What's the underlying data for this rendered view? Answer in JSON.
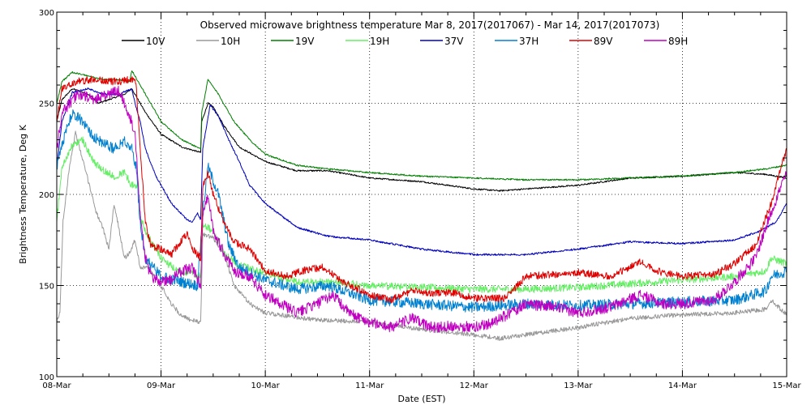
{
  "chart_data": {
    "type": "line",
    "title": "Observed microwave brightness temperature Mar  8, 2017(2017067) - Mar 14, 2017(2017073)",
    "xlabel": "Date (EST)",
    "ylabel": "Brightness Temperature, Deg K",
    "x_tick_labels": [
      "08-Mar",
      "09-Mar",
      "10-Mar",
      "11-Mar",
      "12-Mar",
      "13-Mar",
      "14-Mar",
      "15-Mar"
    ],
    "xlim": [
      0,
      7
    ],
    "ylim": [
      100,
      300
    ],
    "y_ticks": [
      100,
      150,
      200,
      250,
      300
    ],
    "grid": "dotted",
    "legend_position": "top",
    "series": [
      {
        "name": "10V",
        "color": "#000000",
        "noise": 0.4,
        "points": [
          [
            0,
            240
          ],
          [
            0.05,
            252
          ],
          [
            0.15,
            258
          ],
          [
            0.3,
            255
          ],
          [
            0.4,
            250
          ],
          [
            0.5,
            252
          ],
          [
            0.65,
            255
          ],
          [
            0.72,
            258
          ],
          [
            0.78,
            252
          ],
          [
            0.85,
            245
          ],
          [
            1.0,
            233
          ],
          [
            1.2,
            226
          ],
          [
            1.38,
            223
          ],
          [
            1.39,
            240
          ],
          [
            1.45,
            250
          ],
          [
            1.5,
            248
          ],
          [
            1.6,
            238
          ],
          [
            1.75,
            226
          ],
          [
            2.0,
            218
          ],
          [
            2.3,
            213
          ],
          [
            2.6,
            213
          ],
          [
            3.0,
            209
          ],
          [
            3.5,
            207
          ],
          [
            4.0,
            203
          ],
          [
            4.25,
            202
          ],
          [
            4.5,
            203
          ],
          [
            5.0,
            205
          ],
          [
            5.5,
            209
          ],
          [
            6.0,
            210
          ],
          [
            6.5,
            212
          ],
          [
            6.8,
            211
          ],
          [
            7.0,
            209
          ]
        ]
      },
      {
        "name": "10H",
        "color": "#999999",
        "noise": 1.2,
        "points": [
          [
            0,
            130
          ],
          [
            0.03,
            135
          ],
          [
            0.06,
            185
          ],
          [
            0.12,
            215
          ],
          [
            0.18,
            234
          ],
          [
            0.22,
            225
          ],
          [
            0.3,
            208
          ],
          [
            0.38,
            190
          ],
          [
            0.45,
            180
          ],
          [
            0.5,
            170
          ],
          [
            0.55,
            195
          ],
          [
            0.6,
            180
          ],
          [
            0.65,
            165
          ],
          [
            0.7,
            168
          ],
          [
            0.75,
            175
          ],
          [
            0.8,
            160
          ],
          [
            0.88,
            160
          ],
          [
            1.0,
            150
          ],
          [
            1.1,
            140
          ],
          [
            1.2,
            133
          ],
          [
            1.35,
            130
          ],
          [
            1.38,
            130
          ],
          [
            1.4,
            178
          ],
          [
            1.5,
            176
          ],
          [
            1.6,
            168
          ],
          [
            1.7,
            150
          ],
          [
            1.85,
            140
          ],
          [
            2.0,
            135
          ],
          [
            2.5,
            131
          ],
          [
            3.0,
            130
          ],
          [
            3.5,
            126
          ],
          [
            4.0,
            123
          ],
          [
            4.25,
            121
          ],
          [
            4.5,
            123
          ],
          [
            5.0,
            127
          ],
          [
            5.5,
            132
          ],
          [
            6.0,
            134
          ],
          [
            6.5,
            135
          ],
          [
            6.8,
            137
          ],
          [
            6.85,
            142
          ],
          [
            7.0,
            134
          ]
        ]
      },
      {
        "name": "19V",
        "color": "#008000",
        "noise": 0.4,
        "points": [
          [
            0,
            250
          ],
          [
            0.05,
            262
          ],
          [
            0.15,
            267
          ],
          [
            0.3,
            265
          ],
          [
            0.45,
            263
          ],
          [
            0.6,
            263
          ],
          [
            0.7,
            262
          ],
          [
            0.72,
            268
          ],
          [
            0.78,
            262
          ],
          [
            0.85,
            255
          ],
          [
            1.0,
            240
          ],
          [
            1.2,
            230
          ],
          [
            1.38,
            225
          ],
          [
            1.39,
            245
          ],
          [
            1.45,
            263
          ],
          [
            1.55,
            255
          ],
          [
            1.7,
            240
          ],
          [
            1.85,
            230
          ],
          [
            2.0,
            222
          ],
          [
            2.3,
            216
          ],
          [
            2.6,
            214
          ],
          [
            3.0,
            212
          ],
          [
            3.5,
            210
          ],
          [
            4.0,
            209
          ],
          [
            4.5,
            208
          ],
          [
            5.0,
            208
          ],
          [
            5.5,
            209
          ],
          [
            6.0,
            210
          ],
          [
            6.5,
            212
          ],
          [
            6.8,
            214
          ],
          [
            7.0,
            216
          ]
        ]
      },
      {
        "name": "19H",
        "color": "#66ee66",
        "noise": 2.0,
        "points": [
          [
            0,
            185
          ],
          [
            0.05,
            215
          ],
          [
            0.15,
            227
          ],
          [
            0.25,
            230
          ],
          [
            0.35,
            218
          ],
          [
            0.45,
            213
          ],
          [
            0.55,
            210
          ],
          [
            0.65,
            212
          ],
          [
            0.72,
            205
          ],
          [
            0.78,
            205
          ],
          [
            0.8,
            188
          ],
          [
            0.85,
            180
          ],
          [
            1.0,
            165
          ],
          [
            1.15,
            158
          ],
          [
            1.3,
            157
          ],
          [
            1.38,
            155
          ],
          [
            1.4,
            183
          ],
          [
            1.5,
            180
          ],
          [
            1.6,
            168
          ],
          [
            1.75,
            161
          ],
          [
            2.0,
            157
          ],
          [
            2.3,
            152
          ],
          [
            2.6,
            152
          ],
          [
            3.0,
            150
          ],
          [
            3.5,
            149
          ],
          [
            4.0,
            148
          ],
          [
            4.5,
            148
          ],
          [
            5.0,
            149
          ],
          [
            5.5,
            151
          ],
          [
            6.0,
            153
          ],
          [
            6.5,
            155
          ],
          [
            6.8,
            158
          ],
          [
            6.85,
            165
          ],
          [
            7.0,
            162
          ]
        ]
      },
      {
        "name": "37V",
        "color": "#0000c0",
        "noise": 0.5,
        "points": [
          [
            0,
            215
          ],
          [
            0.05,
            240
          ],
          [
            0.15,
            256
          ],
          [
            0.3,
            258
          ],
          [
            0.45,
            255
          ],
          [
            0.6,
            255
          ],
          [
            0.72,
            258
          ],
          [
            0.75,
            250
          ],
          [
            0.8,
            240
          ],
          [
            0.85,
            225
          ],
          [
            0.95,
            210
          ],
          [
            1.1,
            195
          ],
          [
            1.2,
            189
          ],
          [
            1.25,
            186
          ],
          [
            1.3,
            185
          ],
          [
            1.35,
            190
          ],
          [
            1.38,
            186
          ],
          [
            1.4,
            225
          ],
          [
            1.47,
            249
          ],
          [
            1.55,
            243
          ],
          [
            1.65,
            230
          ],
          [
            1.75,
            218
          ],
          [
            1.85,
            205
          ],
          [
            2.0,
            195
          ],
          [
            2.3,
            182
          ],
          [
            2.6,
            177
          ],
          [
            3.0,
            175
          ],
          [
            3.5,
            170
          ],
          [
            4.0,
            167
          ],
          [
            4.5,
            167
          ],
          [
            5.0,
            170
          ],
          [
            5.5,
            174
          ],
          [
            6.0,
            173
          ],
          [
            6.5,
            175
          ],
          [
            6.75,
            180
          ],
          [
            6.9,
            185
          ],
          [
            7.0,
            195
          ]
        ]
      },
      {
        "name": "37H",
        "color": "#0080d0",
        "noise": 3.0,
        "points": [
          [
            0,
            215
          ],
          [
            0.05,
            228
          ],
          [
            0.15,
            245
          ],
          [
            0.25,
            240
          ],
          [
            0.35,
            232
          ],
          [
            0.45,
            228
          ],
          [
            0.55,
            225
          ],
          [
            0.65,
            230
          ],
          [
            0.72,
            225
          ],
          [
            0.76,
            215
          ],
          [
            0.8,
            185
          ],
          [
            0.85,
            165
          ],
          [
            1.0,
            155
          ],
          [
            1.2,
            152
          ],
          [
            1.35,
            150
          ],
          [
            1.4,
            190
          ],
          [
            1.45,
            215
          ],
          [
            1.55,
            200
          ],
          [
            1.65,
            172
          ],
          [
            1.75,
            160
          ],
          [
            2.0,
            153
          ],
          [
            2.3,
            148
          ],
          [
            2.6,
            150
          ],
          [
            3.0,
            142
          ],
          [
            3.5,
            140
          ],
          [
            4.0,
            138
          ],
          [
            4.5,
            140
          ],
          [
            5.0,
            139
          ],
          [
            5.5,
            140
          ],
          [
            6.0,
            141
          ],
          [
            6.5,
            142
          ],
          [
            6.8,
            147
          ],
          [
            6.85,
            155
          ],
          [
            7.0,
            158
          ]
        ]
      },
      {
        "name": "89V",
        "color": "#e00000",
        "noise": 2.0,
        "points": [
          [
            0,
            240
          ],
          [
            0.05,
            258
          ],
          [
            0.2,
            262
          ],
          [
            0.35,
            263
          ],
          [
            0.5,
            262
          ],
          [
            0.6,
            262
          ],
          [
            0.7,
            263
          ],
          [
            0.76,
            262
          ],
          [
            0.8,
            225
          ],
          [
            0.85,
            185
          ],
          [
            0.9,
            172
          ],
          [
            1.0,
            170
          ],
          [
            1.1,
            167
          ],
          [
            1.2,
            175
          ],
          [
            1.25,
            178
          ],
          [
            1.3,
            170
          ],
          [
            1.38,
            165
          ],
          [
            1.4,
            205
          ],
          [
            1.45,
            212
          ],
          [
            1.5,
            200
          ],
          [
            1.6,
            185
          ],
          [
            1.7,
            174
          ],
          [
            1.85,
            170
          ],
          [
            2.0,
            158
          ],
          [
            2.2,
            155
          ],
          [
            2.35,
            158
          ],
          [
            2.55,
            160
          ],
          [
            2.75,
            152
          ],
          [
            3.0,
            145
          ],
          [
            3.2,
            142
          ],
          [
            3.4,
            147
          ],
          [
            3.6,
            146
          ],
          [
            3.8,
            146
          ],
          [
            4.0,
            143
          ],
          [
            4.3,
            143
          ],
          [
            4.5,
            155
          ],
          [
            5.0,
            157
          ],
          [
            5.3,
            155
          ],
          [
            5.6,
            163
          ],
          [
            5.8,
            157
          ],
          [
            6.0,
            155
          ],
          [
            6.3,
            156
          ],
          [
            6.5,
            162
          ],
          [
            6.7,
            172
          ],
          [
            6.85,
            195
          ],
          [
            6.95,
            215
          ],
          [
            7.0,
            225
          ]
        ]
      },
      {
        "name": "89H",
        "color": "#c000c0",
        "noise": 3.0,
        "points": [
          [
            0,
            225
          ],
          [
            0.05,
            245
          ],
          [
            0.2,
            255
          ],
          [
            0.35,
            252
          ],
          [
            0.5,
            255
          ],
          [
            0.6,
            257
          ],
          [
            0.68,
            245
          ],
          [
            0.75,
            235
          ],
          [
            0.8,
            190
          ],
          [
            0.85,
            165
          ],
          [
            0.9,
            155
          ],
          [
            1.0,
            152
          ],
          [
            1.1,
            153
          ],
          [
            1.2,
            158
          ],
          [
            1.3,
            160
          ],
          [
            1.38,
            150
          ],
          [
            1.4,
            190
          ],
          [
            1.45,
            200
          ],
          [
            1.5,
            180
          ],
          [
            1.6,
            168
          ],
          [
            1.7,
            158
          ],
          [
            1.85,
            155
          ],
          [
            2.0,
            145
          ],
          [
            2.3,
            135
          ],
          [
            2.5,
            140
          ],
          [
            2.65,
            145
          ],
          [
            2.8,
            135
          ],
          [
            3.0,
            130
          ],
          [
            3.2,
            127
          ],
          [
            3.4,
            132
          ],
          [
            3.6,
            127
          ],
          [
            3.8,
            128
          ],
          [
            4.0,
            127
          ],
          [
            4.2,
            130
          ],
          [
            4.5,
            140
          ],
          [
            4.8,
            138
          ],
          [
            5.0,
            135
          ],
          [
            5.3,
            138
          ],
          [
            5.6,
            145
          ],
          [
            5.8,
            140
          ],
          [
            6.0,
            140
          ],
          [
            6.3,
            142
          ],
          [
            6.5,
            152
          ],
          [
            6.7,
            165
          ],
          [
            6.85,
            190
          ],
          [
            6.95,
            205
          ],
          [
            7.0,
            212
          ]
        ]
      }
    ]
  }
}
